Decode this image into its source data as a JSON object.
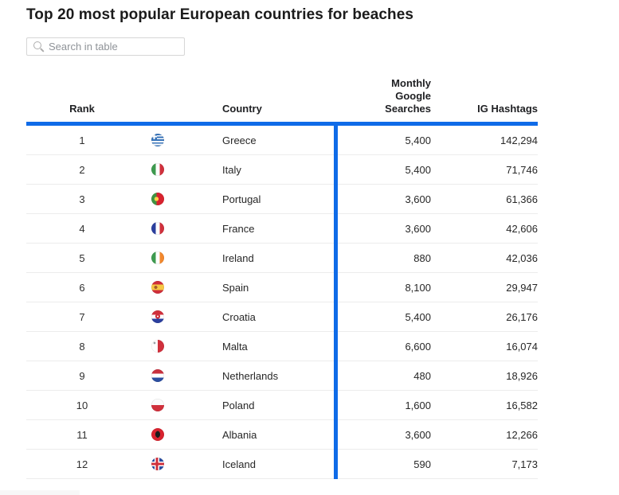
{
  "page": {
    "title": "Top 20 most popular European countries for beaches"
  },
  "search": {
    "placeholder": "Search in table"
  },
  "table": {
    "columns": {
      "rank": "Rank",
      "country": "Country",
      "monthly_google_searches": "Monthly Google Searches",
      "ig_hashtags": "IG Hashtags"
    },
    "rows": [
      {
        "rank": "1",
        "flag": "greece",
        "country": "Greece",
        "monthly_google_searches": "5,400",
        "ig_hashtags": "142,294"
      },
      {
        "rank": "2",
        "flag": "italy",
        "country": "Italy",
        "monthly_google_searches": "5,400",
        "ig_hashtags": "71,746"
      },
      {
        "rank": "3",
        "flag": "portugal",
        "country": "Portugal",
        "monthly_google_searches": "3,600",
        "ig_hashtags": "61,366"
      },
      {
        "rank": "4",
        "flag": "france",
        "country": "France",
        "monthly_google_searches": "3,600",
        "ig_hashtags": "42,606"
      },
      {
        "rank": "5",
        "flag": "ireland",
        "country": "Ireland",
        "monthly_google_searches": "880",
        "ig_hashtags": "42,036"
      },
      {
        "rank": "6",
        "flag": "spain",
        "country": "Spain",
        "monthly_google_searches": "8,100",
        "ig_hashtags": "29,947"
      },
      {
        "rank": "7",
        "flag": "croatia",
        "country": "Croatia",
        "monthly_google_searches": "5,400",
        "ig_hashtags": "26,176"
      },
      {
        "rank": "8",
        "flag": "malta",
        "country": "Malta",
        "monthly_google_searches": "6,600",
        "ig_hashtags": "16,074"
      },
      {
        "rank": "9",
        "flag": "netherlands",
        "country": "Netherlands",
        "monthly_google_searches": "480",
        "ig_hashtags": "18,926"
      },
      {
        "rank": "10",
        "flag": "poland",
        "country": "Poland",
        "monthly_google_searches": "1,600",
        "ig_hashtags": "16,582"
      },
      {
        "rank": "11",
        "flag": "albania",
        "country": "Albania",
        "monthly_google_searches": "3,600",
        "ig_hashtags": "12,266"
      },
      {
        "rank": "12",
        "flag": "iceland",
        "country": "Iceland",
        "monthly_google_searches": "590",
        "ig_hashtags": "7,173"
      }
    ]
  },
  "colors": {
    "accent_blue": "#0f6be8",
    "row_divider": "#ececec"
  }
}
